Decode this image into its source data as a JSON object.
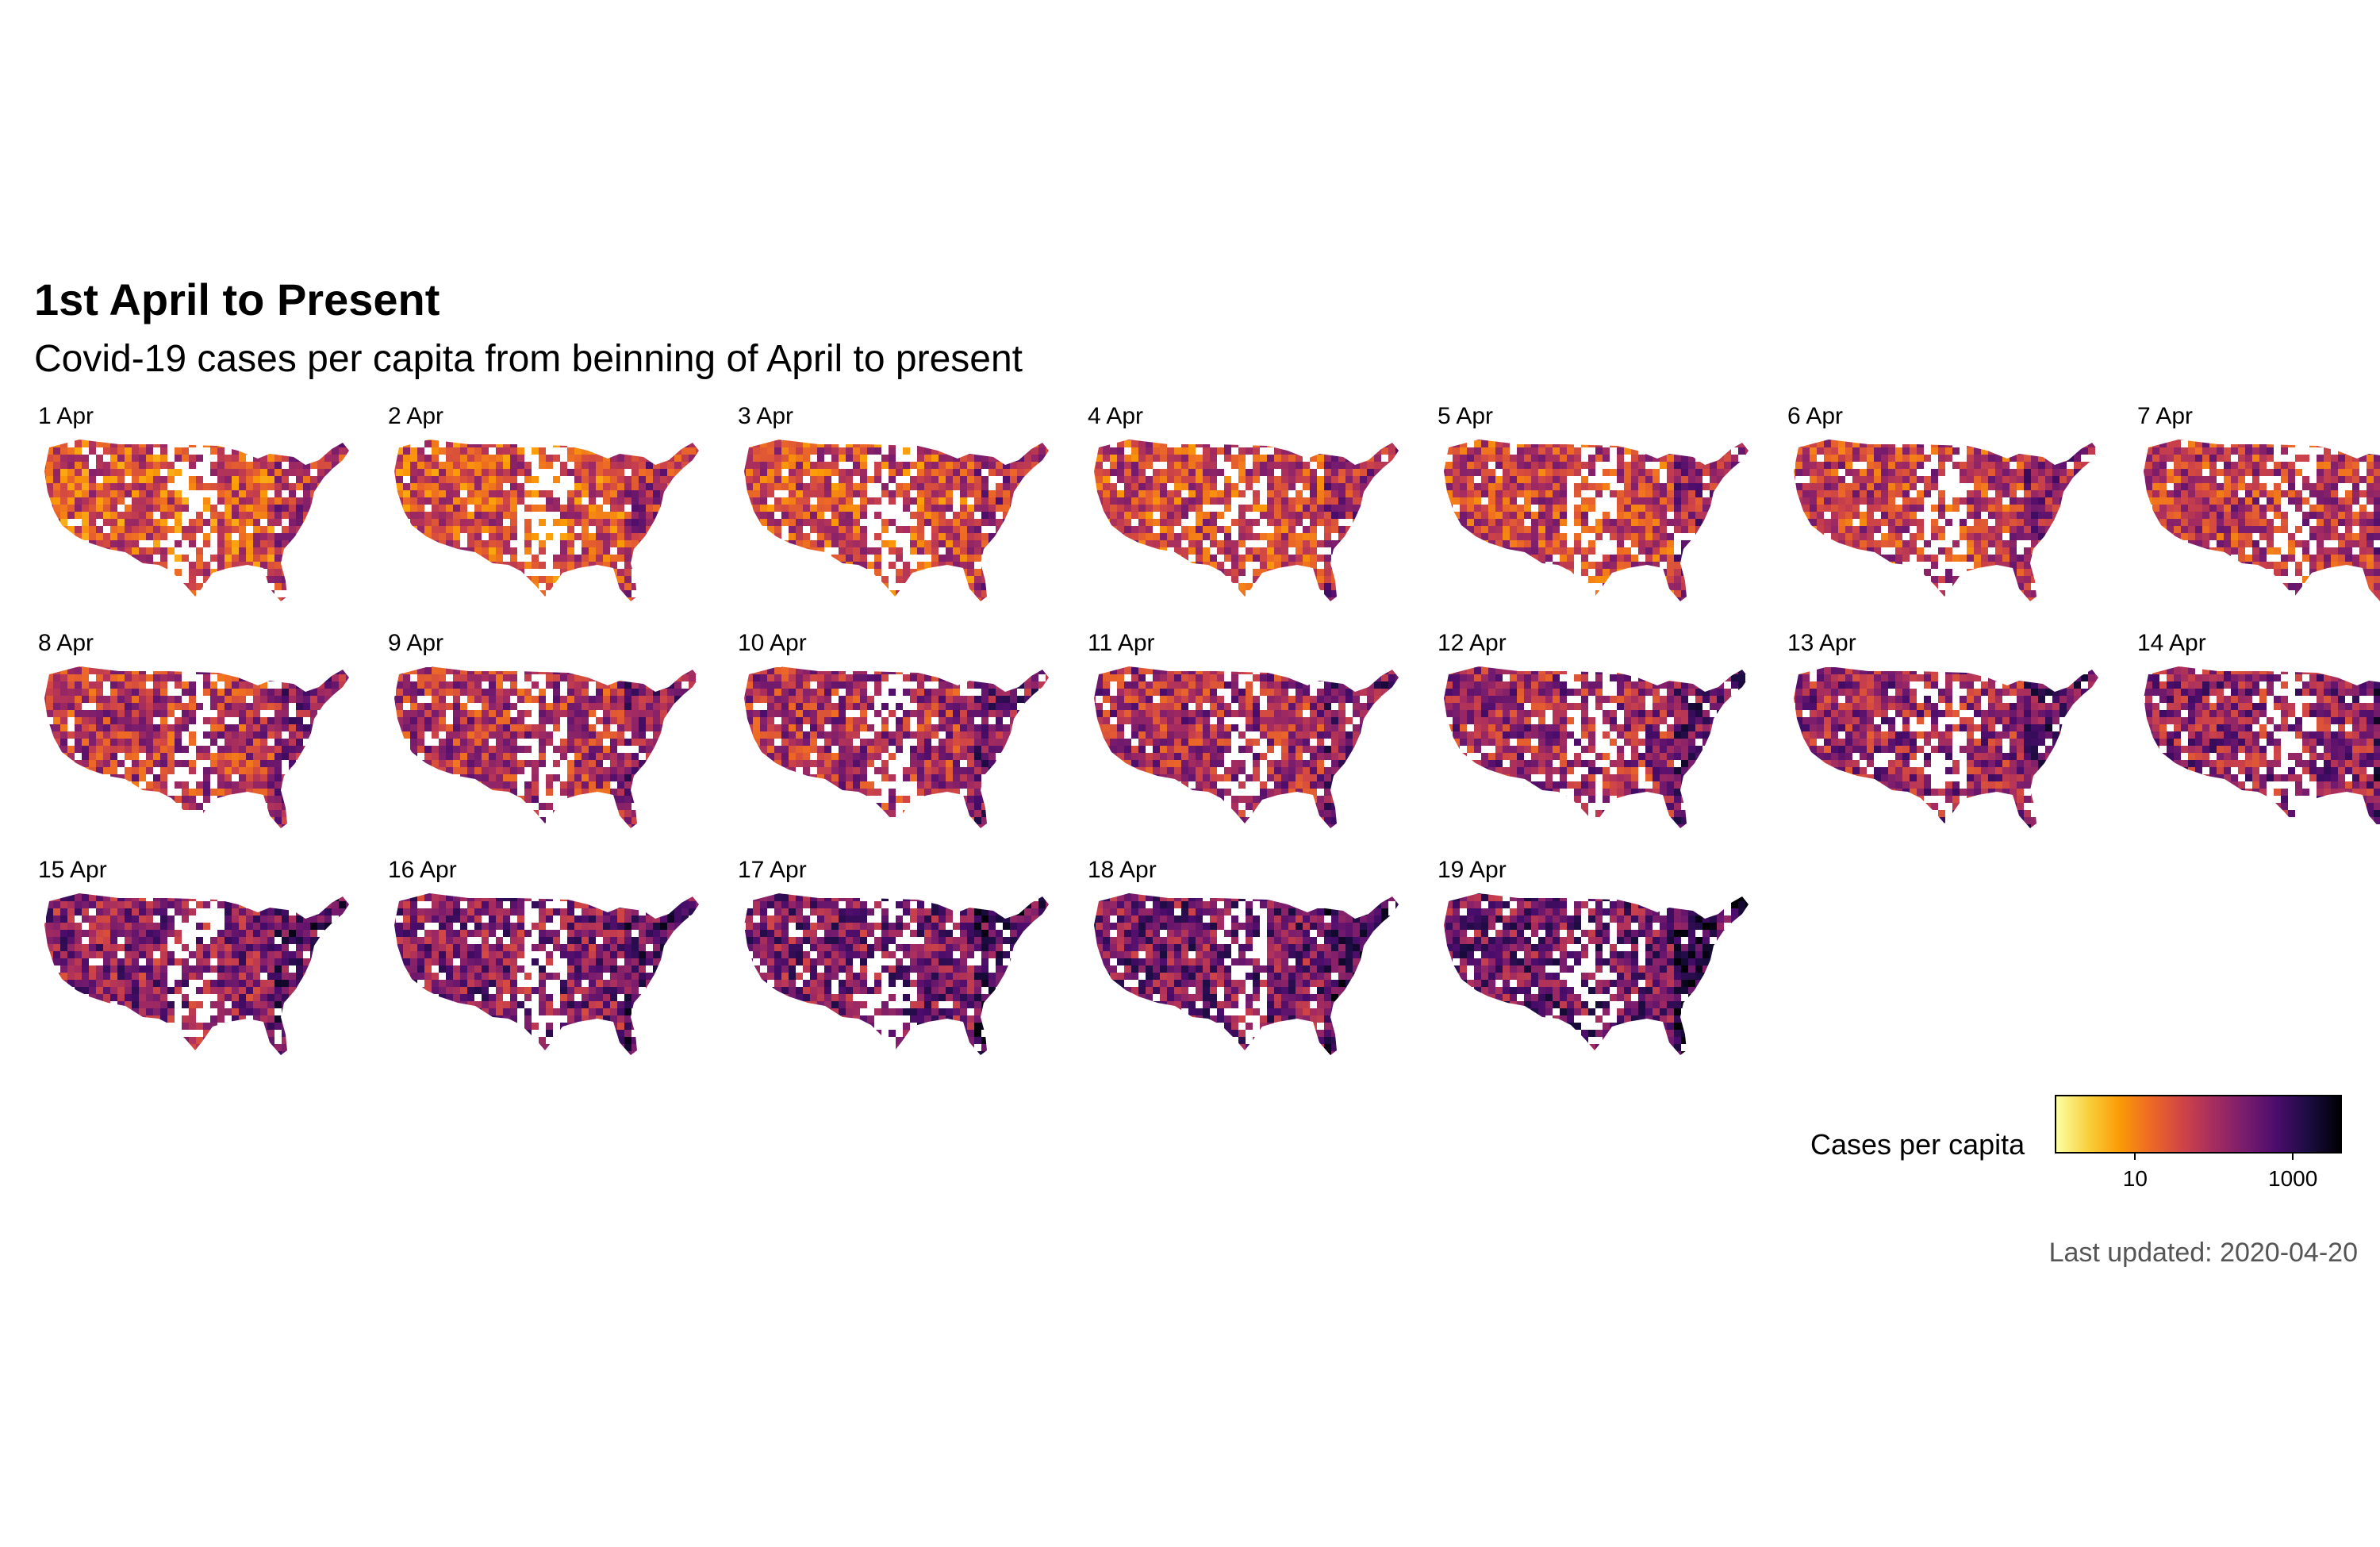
{
  "title": "1st April to Present",
  "subtitle": "Covid-19 cases per capita from beinning of April to present",
  "facets": [
    "1 Apr",
    "2 Apr",
    "3 Apr",
    "4 Apr",
    "5 Apr",
    "6 Apr",
    "7 Apr",
    "8 Apr",
    "9 Apr",
    "10 Apr",
    "11 Apr",
    "12 Apr",
    "13 Apr",
    "14 Apr",
    "15 Apr",
    "16 Apr",
    "17 Apr",
    "18 Apr",
    "19 Apr"
  ],
  "legend": {
    "title": "Cases per capita",
    "ticks": [
      {
        "label": "10",
        "value": 10
      },
      {
        "label": "1000",
        "value": 1000
      }
    ],
    "scale": "log",
    "colors": [
      "#fcffa4",
      "#f7d13d",
      "#fb9b06",
      "#ed6925",
      "#cf4446",
      "#a52c60",
      "#781c6d",
      "#4a0c6b",
      "#1b0c41",
      "#000004"
    ]
  },
  "caption": "Last updated: 2020-04-20"
}
